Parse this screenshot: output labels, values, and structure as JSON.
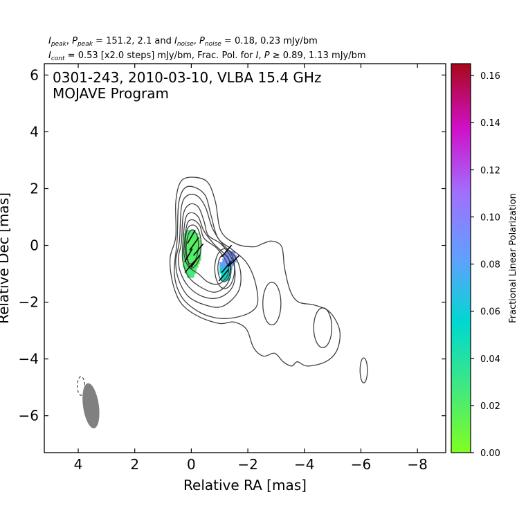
{
  "chart_data": {
    "type": "contour",
    "header": {
      "line1": {
        "segments": [
          {
            "t": "I",
            "style": "italic"
          },
          {
            "t": "peak",
            "style": "sub"
          },
          {
            "t": ", "
          },
          {
            "t": "P",
            "style": "italic"
          },
          {
            "t": "peak",
            "style": "sub"
          },
          {
            "t": " = 151.2, 2.1 and "
          },
          {
            "t": "I",
            "style": "italic"
          },
          {
            "t": "noise",
            "style": "sub"
          },
          {
            "t": ", "
          },
          {
            "t": "P",
            "style": "italic"
          },
          {
            "t": "noise",
            "style": "sub"
          },
          {
            "t": " = 0.18, 0.23 mJy/bm"
          }
        ]
      },
      "line2": {
        "segments": [
          {
            "t": "I",
            "style": "italic"
          },
          {
            "t": "cont",
            "style": "sub"
          },
          {
            "t": " = 0.53 [x2.0 steps] mJy/bm, Frac. Pol. for "
          },
          {
            "t": "I",
            "style": "italic"
          },
          {
            "t": ", "
          },
          {
            "t": "P",
            "style": "italic"
          },
          {
            "t": " ≥ 0.89, 1.13 mJy/bm"
          }
        ]
      }
    },
    "annotation": [
      "0301-243, 2010-03-10, VLBA 15.4 GHz",
      "MOJAVE Program"
    ],
    "xlabel": "Relative RA [mas]",
    "ylabel": "Relative Dec [mas]",
    "xlim": [
      5.2,
      -9.0
    ],
    "ylim": [
      -7.3,
      6.4
    ],
    "xticks": [
      4,
      2,
      0,
      -2,
      -4,
      -6,
      -8
    ],
    "yticks": [
      -6,
      -4,
      -2,
      0,
      2,
      4,
      6
    ],
    "colorbar": {
      "label": "Fractional Linear Polarization",
      "range": [
        0.0,
        0.165
      ],
      "ticks": [
        "0.00",
        "0.02",
        "0.04",
        "0.06",
        "0.08",
        "0.10",
        "0.12",
        "0.14",
        "0.16"
      ],
      "colors": [
        "#80ff20",
        "#40e880",
        "#00d8d0",
        "#60a0ff",
        "#a070ff",
        "#d010c8",
        "#a80818"
      ]
    },
    "colors": {
      "contour": "#404040",
      "beam": "#808080",
      "evpa": "#000000"
    },
    "contours": [
      [
        [
          0.55,
          0.3
        ],
        [
          0.55,
          1.5
        ],
        [
          0.4,
          2.2
        ],
        [
          0.05,
          2.4
        ],
        [
          -0.55,
          2.25
        ],
        [
          -0.85,
          1.55
        ],
        [
          -1.05,
          0.5
        ],
        [
          -1.6,
          0.05
        ],
        [
          -2.2,
          -0.05
        ],
        [
          -2.5,
          0.05
        ],
        [
          -2.85,
          0.15
        ],
        [
          -3.2,
          -0.05
        ],
        [
          -3.3,
          -0.8
        ],
        [
          -3.5,
          -1.6
        ],
        [
          -3.8,
          -2.0
        ],
        [
          -4.35,
          -2.1
        ],
        [
          -4.9,
          -2.35
        ],
        [
          -5.25,
          -3.0
        ],
        [
          -5.15,
          -3.7
        ],
        [
          -4.75,
          -4.1
        ],
        [
          -4.1,
          -4.25
        ],
        [
          -3.75,
          -4.1
        ],
        [
          -3.55,
          -4.25
        ],
        [
          -3.25,
          -4.1
        ],
        [
          -2.95,
          -3.8
        ],
        [
          -2.55,
          -3.9
        ],
        [
          -2.2,
          -3.6
        ],
        [
          -1.95,
          -2.95
        ],
        [
          -1.5,
          -2.7
        ],
        [
          -1.0,
          -2.75
        ],
        [
          -0.25,
          -2.5
        ],
        [
          0.35,
          -2.05
        ],
        [
          0.65,
          -1.35
        ],
        [
          0.75,
          -0.45
        ]
      ],
      [
        [
          0.5,
          0.2
        ],
        [
          0.45,
          1.45
        ],
        [
          0.25,
          2.0
        ],
        [
          -0.1,
          2.05
        ],
        [
          -0.5,
          1.75
        ],
        [
          -0.7,
          1.05
        ],
        [
          -0.95,
          0.25
        ],
        [
          -1.45,
          -0.15
        ],
        [
          -1.95,
          -0.6
        ],
        [
          -2.25,
          -1.25
        ],
        [
          -2.35,
          -2.0
        ],
        [
          -2.1,
          -2.35
        ],
        [
          -1.5,
          -2.55
        ],
        [
          -0.85,
          -2.55
        ],
        [
          -0.2,
          -2.3
        ],
        [
          0.35,
          -1.8
        ],
        [
          0.6,
          -1.0
        ]
      ],
      [
        [
          0.42,
          0.15
        ],
        [
          0.35,
          1.35
        ],
        [
          0.15,
          1.75
        ],
        [
          -0.2,
          1.75
        ],
        [
          -0.5,
          1.35
        ],
        [
          -0.75,
          0.6
        ],
        [
          -1.1,
          0.05
        ],
        [
          -1.55,
          -0.4
        ],
        [
          -1.75,
          -1.0
        ],
        [
          -1.65,
          -1.65
        ],
        [
          -1.1,
          -2.15
        ],
        [
          -0.5,
          -2.1
        ],
        [
          0.1,
          -1.8
        ],
        [
          0.45,
          -1.2
        ],
        [
          0.55,
          -0.55
        ]
      ],
      [
        [
          0.35,
          0.1
        ],
        [
          0.28,
          1.1
        ],
        [
          0.05,
          1.45
        ],
        [
          -0.25,
          1.35
        ],
        [
          -0.45,
          0.85
        ],
        [
          -0.6,
          0.35
        ],
        [
          -1.05,
          0.05
        ],
        [
          -1.45,
          -0.5
        ],
        [
          -1.55,
          -1.05
        ],
        [
          -1.4,
          -1.55
        ],
        [
          -0.95,
          -1.85
        ],
        [
          -0.4,
          -1.8
        ],
        [
          0.1,
          -1.45
        ],
        [
          0.4,
          -0.9
        ],
        [
          0.45,
          -0.4
        ]
      ],
      [
        [
          0.3,
          0.05
        ],
        [
          0.2,
          0.95
        ],
        [
          0.0,
          1.15
        ],
        [
          -0.25,
          1.0
        ],
        [
          -0.45,
          0.5
        ],
        [
          -0.8,
          0.05
        ],
        [
          -1.3,
          -0.45
        ],
        [
          -1.4,
          -1.0
        ],
        [
          -1.2,
          -1.45
        ],
        [
          -0.8,
          -1.65
        ],
        [
          -0.3,
          -1.45
        ],
        [
          0.1,
          -1.1
        ],
        [
          0.3,
          -0.55
        ]
      ],
      [
        [
          0.25,
          0.0
        ],
        [
          0.15,
          0.75
        ],
        [
          -0.05,
          0.9
        ],
        [
          -0.3,
          0.7
        ],
        [
          -0.45,
          0.25
        ],
        [
          -0.9,
          -0.1
        ],
        [
          -1.25,
          -0.6
        ],
        [
          -1.3,
          -1.0
        ],
        [
          -1.0,
          -1.35
        ],
        [
          -0.6,
          -1.3
        ],
        [
          -0.25,
          -1.0
        ],
        [
          0.1,
          -0.75
        ],
        [
          0.25,
          -0.35
        ]
      ],
      [
        [
          0.22,
          -0.05
        ],
        [
          0.15,
          0.55
        ],
        [
          -0.05,
          0.72
        ],
        [
          -0.25,
          0.55
        ],
        [
          -0.35,
          0.05
        ],
        [
          -0.25,
          -0.55
        ],
        [
          0.0,
          -0.8
        ],
        [
          0.15,
          -0.5
        ]
      ],
      [
        [
          0.18,
          -0.05
        ],
        [
          0.1,
          0.4
        ],
        [
          -0.05,
          0.55
        ],
        [
          -0.2,
          0.35
        ],
        [
          -0.25,
          -0.05
        ],
        [
          -0.15,
          -0.5
        ],
        [
          0.05,
          -0.65
        ],
        [
          0.15,
          -0.4
        ]
      ]
    ],
    "contour_ellipses": [
      {
        "cx": -1.18,
        "cy": -0.82,
        "rx": 0.35,
        "ry": 0.7
      },
      {
        "cx": -1.16,
        "cy": -0.8,
        "rx": 0.22,
        "ry": 0.48
      },
      {
        "cx": -2.85,
        "cy": -2.05,
        "rx": 0.32,
        "ry": 0.75
      },
      {
        "cx": -4.65,
        "cy": -2.9,
        "rx": 0.32,
        "ry": 0.7
      },
      {
        "cx": -6.1,
        "cy": -4.4,
        "rx": 0.13,
        "ry": 0.44
      }
    ],
    "negative_contours": [
      {
        "cx": 3.9,
        "cy": -4.95,
        "rx": 0.13,
        "ry": 0.33
      }
    ],
    "beam": {
      "cx": 3.55,
      "cy": -5.65,
      "rx": 0.28,
      "ry": 0.8,
      "angle_deg": -8
    },
    "pol_pixels": [
      {
        "x": 0.2,
        "y": 0.55,
        "w": 0.35,
        "h": 0.12,
        "frac": 0.025
      },
      {
        "x": 0.3,
        "y": 0.43,
        "w": 0.55,
        "h": 0.12,
        "frac": 0.022
      },
      {
        "x": 0.3,
        "y": 0.31,
        "w": 0.6,
        "h": 0.12,
        "frac": 0.02
      },
      {
        "x": 0.3,
        "y": 0.19,
        "w": 0.65,
        "h": 0.12,
        "frac": 0.018
      },
      {
        "x": 0.3,
        "y": 0.07,
        "w": 0.65,
        "h": 0.12,
        "frac": 0.018
      },
      {
        "x": 0.3,
        "y": -0.05,
        "w": 0.65,
        "h": 0.12,
        "frac": 0.02
      },
      {
        "x": 0.3,
        "y": -0.17,
        "w": 0.65,
        "h": 0.12,
        "frac": 0.02
      },
      {
        "x": 0.3,
        "y": -0.29,
        "w": 0.65,
        "h": 0.12,
        "frac": 0.022
      },
      {
        "x": 0.3,
        "y": -0.41,
        "w": 0.65,
        "h": 0.12,
        "frac": 0.02
      },
      {
        "x": 0.3,
        "y": -0.53,
        "w": 0.6,
        "h": 0.12,
        "frac": 0.018
      },
      {
        "x": 0.3,
        "y": -0.65,
        "w": 0.55,
        "h": 0.12,
        "frac": 0.02
      },
      {
        "x": 0.25,
        "y": -0.77,
        "w": 0.45,
        "h": 0.12,
        "frac": 0.022
      },
      {
        "x": 0.2,
        "y": -0.89,
        "w": 0.35,
        "h": 0.12,
        "frac": 0.025
      },
      {
        "x": 0.15,
        "y": -1.01,
        "w": 0.25,
        "h": 0.12,
        "frac": 0.028
      },
      {
        "x": -1.2,
        "y": -0.2,
        "w": 0.35,
        "h": 0.13,
        "frac": 0.095
      },
      {
        "x": -1.15,
        "y": -0.33,
        "w": 0.45,
        "h": 0.13,
        "frac": 0.092
      },
      {
        "x": -1.1,
        "y": -0.46,
        "w": 0.5,
        "h": 0.13,
        "frac": 0.09
      },
      {
        "x": -1.0,
        "y": -0.59,
        "w": 0.5,
        "h": 0.13,
        "frac": 0.085
      },
      {
        "x": -1.0,
        "y": -0.72,
        "w": 0.45,
        "h": 0.13,
        "frac": 0.07
      },
      {
        "x": -1.0,
        "y": -0.85,
        "w": 0.4,
        "h": 0.13,
        "frac": 0.055
      },
      {
        "x": -1.05,
        "y": -0.98,
        "w": 0.35,
        "h": 0.13,
        "frac": 0.05
      },
      {
        "x": -1.05,
        "y": -1.11,
        "w": 0.3,
        "h": 0.13,
        "frac": 0.055
      }
    ],
    "evpa_vectors": [
      {
        "x": 0.0,
        "y": 0.3,
        "angle_deg": 30
      },
      {
        "x": -0.1,
        "y": 0.05,
        "angle_deg": 35
      },
      {
        "x": -0.25,
        "y": -0.15,
        "angle_deg": 40
      },
      {
        "x": 0.1,
        "y": -0.35,
        "angle_deg": 30
      },
      {
        "x": -0.15,
        "y": -0.55,
        "angle_deg": 35
      },
      {
        "x": 0.05,
        "y": -0.75,
        "angle_deg": 40
      },
      {
        "x": -1.25,
        "y": -0.2,
        "angle_deg": 40
      },
      {
        "x": -1.5,
        "y": -0.55,
        "angle_deg": 45
      },
      {
        "x": -1.25,
        "y": -0.75,
        "angle_deg": 40
      },
      {
        "x": -1.15,
        "y": -1.05,
        "angle_deg": 40
      }
    ]
  }
}
